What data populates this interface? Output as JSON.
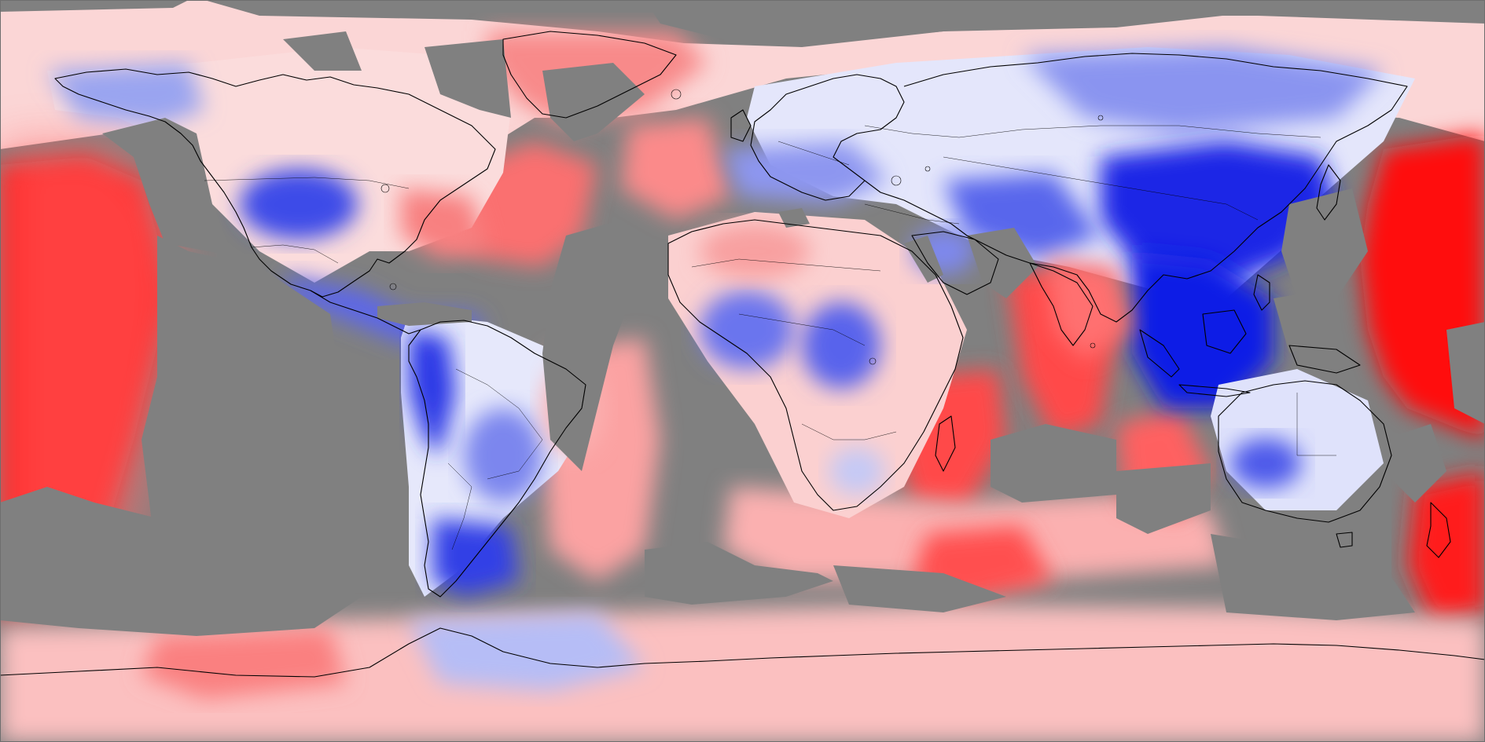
{
  "map": {
    "projection": "equirectangular",
    "extent": "global",
    "colormap": {
      "negative": "#0000ff",
      "neutral": "#ffffff",
      "positive": "#ff0000",
      "no_data": "#808080",
      "coastline": "#000000"
    },
    "features": {
      "coastlines": true,
      "country_borders": true,
      "lakes": true
    }
  }
}
